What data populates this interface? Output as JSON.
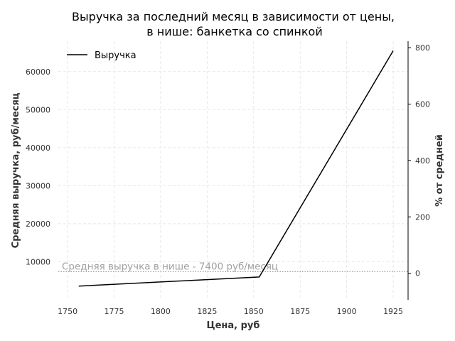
{
  "chart_data": {
    "type": "line",
    "title_line1": "Выручка за последний месяц в зависимости от цены,",
    "title_line2": "в нише: банкетка со спинкой",
    "xlabel": "Цена, руб",
    "ylabel": "Средняя выручка, руб/месяц",
    "y2label": "% от средней",
    "xlim": [
      1745,
      1933
    ],
    "ylim": [
      0,
      68000
    ],
    "y2lim": [
      -94,
      823
    ],
    "x_ticks": [
      1750,
      1775,
      1800,
      1825,
      1850,
      1875,
      1900,
      1925
    ],
    "y_ticks": [
      10000,
      20000,
      30000,
      40000,
      50000,
      60000
    ],
    "y2_ticks": [
      0,
      200,
      400,
      600,
      800
    ],
    "grid": true,
    "legend_position": "top-left",
    "series": [
      {
        "name": "Выручка",
        "color": "#000000",
        "x": [
          1756,
          1853,
          1925
        ],
        "y": [
          3600,
          6000,
          65500
        ]
      }
    ],
    "reference_line": {
      "value": 7400,
      "label": "Средняя выручка в нише - 7400 руб/месяц",
      "color": "#a0a0a0"
    }
  }
}
